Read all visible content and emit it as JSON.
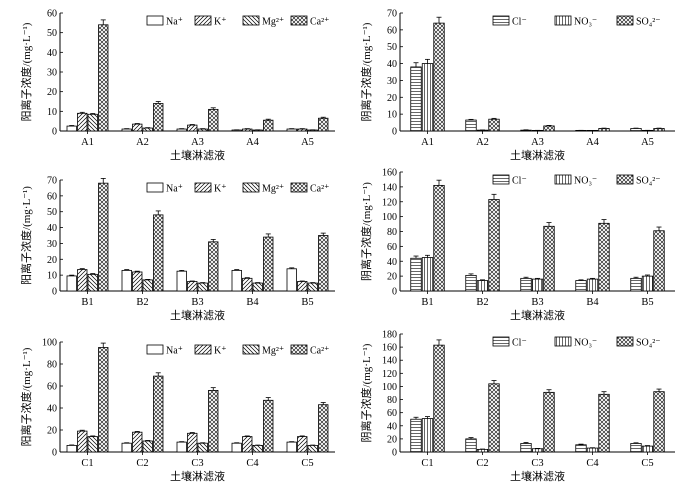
{
  "chart_data": [
    {
      "type": "bar",
      "xlabel": "土壤淋滤液",
      "ylabel": "阳离子浓度/(mg·L⁻¹)",
      "ylim": [
        0,
        60
      ],
      "yticks": [
        "0",
        "10",
        "20",
        "30",
        "40",
        "50",
        "60"
      ],
      "categories": [
        "A1",
        "A2",
        "A3",
        "A4",
        "A5"
      ],
      "series": [
        {
          "name": "Na⁺",
          "pattern": "blank",
          "values": [
            2.5,
            1,
            1,
            0.5,
            1
          ],
          "errors": [
            0.3,
            0.2,
            0.2,
            0.1,
            0.2
          ]
        },
        {
          "name": "K⁺",
          "pattern": "slash",
          "values": [
            9,
            3.5,
            3,
            1,
            1
          ],
          "errors": [
            0.5,
            0.3,
            0.3,
            0.2,
            0.2
          ]
        },
        {
          "name": "Mg²⁺",
          "pattern": "back",
          "values": [
            8.5,
            1.5,
            1,
            0.5,
            0.5
          ],
          "errors": [
            0.4,
            0.2,
            0.2,
            0.1,
            0.1
          ]
        },
        {
          "name": "Ca²⁺",
          "pattern": "cross",
          "values": [
            54,
            14,
            11,
            5.5,
            6.5
          ],
          "errors": [
            2.5,
            1,
            0.8,
            0.5,
            0.5
          ]
        }
      ],
      "legend": "top-right"
    },
    {
      "type": "bar",
      "xlabel": "土壤淋滤液",
      "ylabel": "阴离子浓度/(mg·L⁻¹)",
      "ylim": [
        0,
        70
      ],
      "yticks": [
        "0",
        "10",
        "20",
        "30",
        "40",
        "50",
        "60",
        "70"
      ],
      "categories": [
        "A1",
        "A2",
        "A3",
        "A4",
        "A5"
      ],
      "series": [
        {
          "name": "Cl⁻",
          "pattern": "hline",
          "values": [
            38,
            6.5,
            0.5,
            0.3,
            1.5
          ],
          "errors": [
            2.5,
            0.4,
            0.2,
            0.1,
            0.2
          ]
        },
        {
          "name": "NO₃⁻",
          "pattern": "vline",
          "values": [
            40,
            0.5,
            0.3,
            0.2,
            0.3
          ],
          "errors": [
            2.5,
            0.1,
            0.1,
            0.1,
            0.1
          ]
        },
        {
          "name": "SO₄²⁻",
          "pattern": "cross",
          "values": [
            64,
            7,
            3,
            1.5,
            1.5
          ],
          "errors": [
            3.5,
            0.5,
            0.3,
            0.2,
            0.2
          ]
        }
      ],
      "legend": "top-right"
    },
    {
      "type": "bar",
      "xlabel": "土壤淋滤液",
      "ylabel": "阳离子浓度/(mg·L⁻¹)",
      "ylim": [
        0,
        70
      ],
      "yticks": [
        "0",
        "10",
        "20",
        "30",
        "40",
        "50",
        "60",
        "70"
      ],
      "categories": [
        "B1",
        "B2",
        "B3",
        "B4",
        "B5"
      ],
      "series": [
        {
          "name": "Na⁺",
          "pattern": "blank",
          "values": [
            9.5,
            13,
            12.5,
            13,
            14
          ],
          "errors": [
            0.5,
            0.5,
            0.5,
            0.5,
            0.6
          ]
        },
        {
          "name": "K⁺",
          "pattern": "slash",
          "values": [
            13.5,
            12,
            6,
            8,
            6
          ],
          "errors": [
            0.6,
            0.5,
            0.3,
            0.4,
            0.3
          ]
        },
        {
          "name": "Mg²⁺",
          "pattern": "back",
          "values": [
            10.5,
            7,
            5,
            5,
            5
          ],
          "errors": [
            0.5,
            0.3,
            0.3,
            0.3,
            0.3
          ]
        },
        {
          "name": "Ca²⁺",
          "pattern": "cross",
          "values": [
            68,
            48,
            31,
            34,
            35
          ],
          "errors": [
            3,
            2.5,
            1.5,
            2,
            1.5
          ]
        }
      ],
      "legend": "top-right"
    },
    {
      "type": "bar",
      "xlabel": "土壤淋滤液",
      "ylabel": "阴离子浓度/(mg·L⁻¹)",
      "ylim": [
        0,
        160
      ],
      "yticks": [
        "0",
        "20",
        "40",
        "60",
        "80",
        "100",
        "120",
        "140",
        "160"
      ],
      "categories": [
        "B1",
        "B2",
        "B3",
        "B4",
        "B5"
      ],
      "series": [
        {
          "name": "Cl⁻",
          "pattern": "hline",
          "values": [
            44,
            21,
            17,
            14,
            17
          ],
          "errors": [
            3,
            2,
            1.5,
            1,
            1.5
          ]
        },
        {
          "name": "NO₃⁻",
          "pattern": "vline",
          "values": [
            45,
            14,
            16,
            16,
            20
          ],
          "errors": [
            3,
            1,
            1,
            1,
            1.5
          ]
        },
        {
          "name": "SO₄²⁻",
          "pattern": "cross",
          "values": [
            142,
            123,
            87,
            91,
            81
          ],
          "errors": [
            7,
            7,
            5,
            5,
            5
          ]
        }
      ],
      "legend": "top-right"
    },
    {
      "type": "bar",
      "xlabel": "土壤淋滤液",
      "ylabel": "阳离子浓度/(mg·L⁻¹)",
      "ylim": [
        0,
        100
      ],
      "yticks": [
        "0",
        "20",
        "40",
        "60",
        "80",
        "100"
      ],
      "categories": [
        "C1",
        "C2",
        "C3",
        "C4",
        "C5"
      ],
      "series": [
        {
          "name": "Na⁺",
          "pattern": "blank",
          "values": [
            6,
            8,
            9,
            8,
            9
          ],
          "errors": [
            0.4,
            0.4,
            0.4,
            0.4,
            0.4
          ]
        },
        {
          "name": "K⁺",
          "pattern": "slash",
          "values": [
            19,
            18,
            17,
            14,
            14
          ],
          "errors": [
            0.8,
            0.7,
            0.7,
            0.6,
            0.6
          ]
        },
        {
          "name": "Mg²⁺",
          "pattern": "back",
          "values": [
            14,
            10,
            8,
            6,
            6
          ],
          "errors": [
            0.6,
            0.5,
            0.4,
            0.3,
            0.3
          ]
        },
        {
          "name": "Ca²⁺",
          "pattern": "cross",
          "values": [
            95,
            69,
            56,
            47,
            43
          ],
          "errors": [
            4,
            3,
            2.5,
            2.5,
            2
          ]
        }
      ],
      "legend": "top-right"
    },
    {
      "type": "bar",
      "xlabel": "土壤淋滤液",
      "ylabel": "阴离子浓度/(mg·L⁻¹)",
      "ylim": [
        0,
        180
      ],
      "yticks": [
        "0",
        "20",
        "40",
        "60",
        "80",
        "100",
        "120",
        "140",
        "160",
        "180"
      ],
      "categories": [
        "C1",
        "C2",
        "C3",
        "C4",
        "C5"
      ],
      "series": [
        {
          "name": "Cl⁻",
          "pattern": "hline",
          "values": [
            50,
            20,
            13,
            11,
            13
          ],
          "errors": [
            3,
            2,
            1.5,
            1,
            1
          ]
        },
        {
          "name": "NO₃⁻",
          "pattern": "vline",
          "values": [
            51,
            4,
            5,
            6,
            9
          ],
          "errors": [
            3,
            0.5,
            0.5,
            0.5,
            0.8
          ]
        },
        {
          "name": "SO₄²⁻",
          "pattern": "cross",
          "values": [
            163,
            104,
            91,
            88,
            92
          ],
          "errors": [
            8,
            5,
            4,
            4,
            4
          ]
        }
      ],
      "legend": "top-right"
    }
  ]
}
